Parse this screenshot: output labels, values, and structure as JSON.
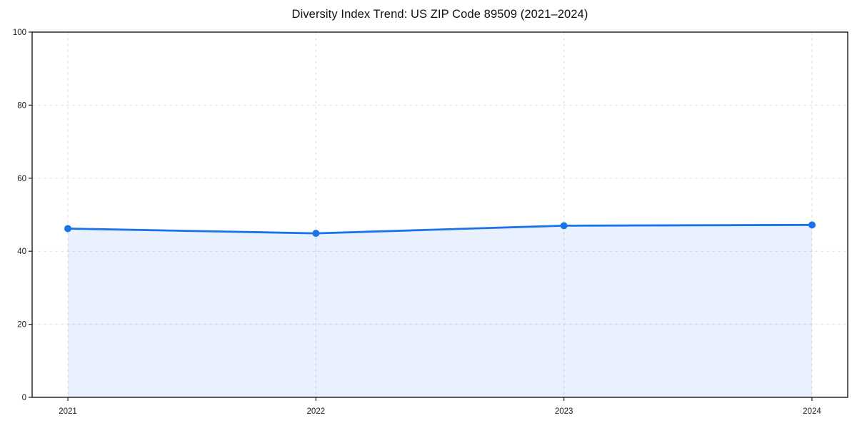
{
  "chart_data": {
    "type": "line",
    "title": "Diversity Index Trend: US ZIP Code 89509 (2021–2024)",
    "x": [
      "2021",
      "2022",
      "2023",
      "2024"
    ],
    "series": [
      {
        "name": "Diversity Index",
        "values": [
          46.2,
          44.9,
          47.0,
          47.2
        ]
      }
    ],
    "xlabel": "",
    "ylabel": "",
    "ylim": [
      0,
      100
    ],
    "yticks": [
      0,
      20,
      40,
      60,
      80,
      100
    ],
    "grid": {
      "style": "dashed",
      "horizontal": true,
      "vertical": true
    },
    "legend": "none",
    "marker_shape": "circle",
    "area_fill": true,
    "area_fill_opacity": 0.1,
    "colors": {
      "line": "#1a73e8",
      "marker": "#1a73e8",
      "area": "#1a73e8",
      "axis": "#1a1a1a",
      "gridline": "#dcdcdc",
      "background": "#ffffff",
      "text": "#111111"
    }
  }
}
